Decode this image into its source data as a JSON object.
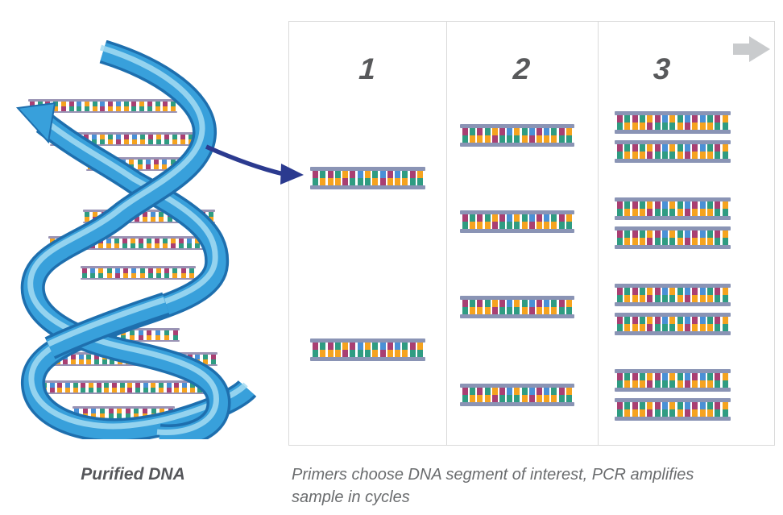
{
  "helix": {
    "icon": "dna-double-helix-illustration",
    "label": "Purified DNA"
  },
  "panel": {
    "cycles": [
      {
        "label": "1",
        "copies": 2
      },
      {
        "label": "2",
        "copies": 4
      },
      {
        "label": "3",
        "copies": 8
      }
    ],
    "continue_arrow_icon": "right-arrow-icon",
    "selection_arrow_icon": "curved-arrow-icon"
  },
  "caption": {
    "text": "Primers choose DNA segment of interest, PCR amplifies sample in cycles"
  },
  "colors": {
    "text_dark": "#58595b",
    "text_caption": "#6a6c6e",
    "table_border": "#dadada",
    "continue_arrow_gray": "#c9cbcd",
    "selection_arrow_navy": "#2b3a8f",
    "ribbon_blue": "#38a0db",
    "ribbon_edge": "#1e6fae",
    "ribbon_highlight": "#a5dcf2",
    "ladder_rail": "#8a94b5",
    "rung_magenta": "#a93f72",
    "rung_teal": "#2f9c82",
    "rung_orange": "#f5a31f",
    "rung_blue": "#4a90d6"
  },
  "rung_pattern": [
    [
      "magenta",
      "teal"
    ],
    [
      "teal",
      "orange"
    ],
    [
      "magenta",
      "orange"
    ],
    [
      "teal",
      "orange"
    ],
    [
      "orange",
      "magenta"
    ],
    [
      "magenta",
      "teal"
    ],
    [
      "blue",
      "teal"
    ],
    [
      "orange",
      "teal"
    ],
    [
      "teal",
      "orange"
    ],
    [
      "blue",
      "magenta"
    ],
    [
      "magenta",
      "orange"
    ],
    [
      "blue",
      "orange"
    ],
    [
      "teal",
      "orange"
    ],
    [
      "magenta",
      "teal"
    ],
    [
      "orange",
      "teal"
    ]
  ]
}
